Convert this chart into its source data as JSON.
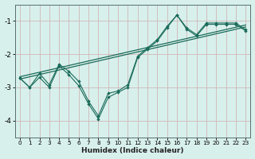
{
  "xlabel": "Humidex (Indice chaleur)",
  "bg_color": "#d8f0ec",
  "grid_color": "#d0bebe",
  "line_color": "#1a6b5a",
  "xlim": [
    -0.5,
    23.5
  ],
  "ylim": [
    -4.5,
    -0.5
  ],
  "yticks": [
    -4,
    -3,
    -2,
    -1
  ],
  "xticks": [
    0,
    1,
    2,
    3,
    4,
    5,
    6,
    7,
    8,
    9,
    10,
    11,
    12,
    13,
    14,
    15,
    16,
    17,
    18,
    19,
    20,
    21,
    22,
    23
  ],
  "line1_x": [
    0,
    1,
    2,
    3,
    4,
    5,
    6,
    7,
    8,
    9,
    10,
    11,
    12,
    13,
    14,
    15,
    16,
    17,
    18,
    19,
    20,
    21,
    22,
    23
  ],
  "line1_y": [
    -2.72,
    -3.0,
    -2.7,
    -3.0,
    -2.35,
    -2.62,
    -2.95,
    -3.5,
    -3.95,
    -3.3,
    -3.15,
    -3.0,
    -2.1,
    -1.85,
    -1.6,
    -1.2,
    -0.82,
    -1.25,
    -1.45,
    -1.1,
    -1.1,
    -1.1,
    -1.1,
    -1.3
  ],
  "line2_x": [
    0,
    1,
    2,
    3,
    4,
    5,
    6,
    7,
    8,
    9,
    10,
    11,
    12,
    13,
    14,
    15,
    16,
    17,
    18,
    19,
    20,
    21,
    22,
    23
  ],
  "line2_y": [
    -2.72,
    -3.0,
    -2.58,
    -2.92,
    -2.3,
    -2.52,
    -2.82,
    -3.42,
    -3.86,
    -3.18,
    -3.11,
    -2.92,
    -2.06,
    -1.81,
    -1.56,
    -1.16,
    -0.82,
    -1.21,
    -1.41,
    -1.06,
    -1.06,
    -1.06,
    -1.06,
    -1.26
  ],
  "trend_x": [
    0,
    23
  ],
  "trend_y": [
    -2.75,
    -1.18
  ],
  "trend2_x": [
    0,
    23
  ],
  "trend2_y": [
    -2.68,
    -1.12
  ]
}
